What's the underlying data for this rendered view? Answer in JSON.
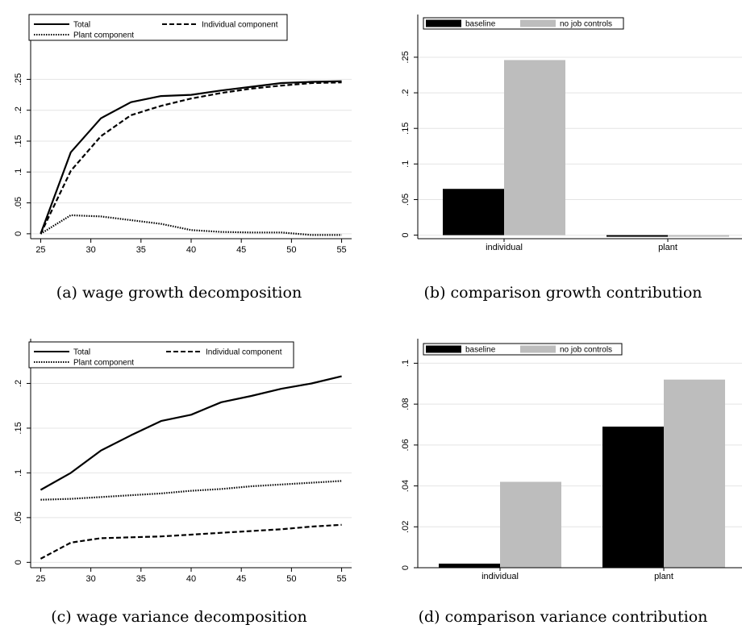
{
  "colors": {
    "baseline": "#000000",
    "no_job_controls": "#bdbdbd",
    "line": "#000000"
  },
  "chart_data": [
    {
      "id": "a",
      "type": "line",
      "caption": "(a)  wage growth decomposition",
      "title": "",
      "xlabel": "",
      "ylabel": "",
      "xlim": [
        24,
        56
      ],
      "ylim": [
        -0.008,
        0.355
      ],
      "xticks": [
        "25",
        "30",
        "35",
        "40",
        "45",
        "50",
        "55"
      ],
      "yticks": [
        "0",
        ".05",
        ".1",
        ".15",
        ".2",
        ".25"
      ],
      "grid": true,
      "legend": "top",
      "x": [
        25,
        28,
        31,
        34,
        37,
        40,
        43,
        46,
        49,
        52,
        55
      ],
      "series": [
        {
          "name": "Total",
          "style": "solid",
          "values": [
            0,
            0.132,
            0.187,
            0.213,
            0.223,
            0.225,
            0.232,
            0.238,
            0.244,
            0.246,
            0.247
          ]
        },
        {
          "name": "Individual component",
          "style": "dashed",
          "values": [
            0,
            0.102,
            0.158,
            0.192,
            0.207,
            0.219,
            0.228,
            0.235,
            0.24,
            0.244,
            0.245
          ]
        },
        {
          "name": "Plant component",
          "style": "dotted",
          "values": [
            0,
            0.03,
            0.028,
            0.022,
            0.016,
            0.006,
            0.003,
            0.002,
            0.002,
            -0.002,
            -0.002
          ]
        }
      ]
    },
    {
      "id": "b",
      "type": "bar",
      "caption": "(b)  comparison growth contribution",
      "title": "",
      "xlabel": "",
      "ylabel": "",
      "categories": [
        "individual",
        "plant"
      ],
      "ylim": [
        -0.005,
        0.31
      ],
      "yticks": [
        "0",
        ".05",
        ".1",
        ".15",
        ".2",
        ".25"
      ],
      "grid": true,
      "legend": "top-left",
      "series": [
        {
          "name": "baseline",
          "values": [
            0.065,
            -0.002
          ]
        },
        {
          "name": "no job controls",
          "values": [
            0.246,
            -0.001
          ]
        }
      ]
    },
    {
      "id": "c",
      "type": "line",
      "caption": "(c)  wage variance decomposition",
      "title": "",
      "xlabel": "",
      "ylabel": "",
      "xlim": [
        24,
        56
      ],
      "ylim": [
        -0.006,
        0.25
      ],
      "xticks": [
        "25",
        "30",
        "35",
        "40",
        "45",
        "50",
        "55"
      ],
      "yticks": [
        "0",
        ".05",
        ".1",
        ".15",
        ".2"
      ],
      "grid": true,
      "legend": "top",
      "x": [
        25,
        28,
        31,
        34,
        37,
        40,
        43,
        46,
        49,
        52,
        55
      ],
      "series": [
        {
          "name": "Total",
          "style": "solid",
          "values": [
            0.081,
            0.1,
            0.125,
            0.142,
            0.158,
            0.165,
            0.179,
            0.186,
            0.194,
            0.2,
            0.208
          ]
        },
        {
          "name": "Individual component",
          "style": "dashed",
          "values": [
            0.004,
            0.022,
            0.027,
            0.028,
            0.029,
            0.031,
            0.033,
            0.035,
            0.037,
            0.04,
            0.042
          ]
        },
        {
          "name": "Plant component",
          "style": "dotted",
          "values": [
            0.07,
            0.071,
            0.073,
            0.075,
            0.077,
            0.08,
            0.082,
            0.085,
            0.087,
            0.089,
            0.091
          ]
        }
      ]
    },
    {
      "id": "d",
      "type": "bar",
      "caption": "(d)  comparison variance contribution",
      "title": "",
      "xlabel": "",
      "ylabel": "",
      "categories": [
        "individual",
        "plant"
      ],
      "ylim": [
        0,
        0.112
      ],
      "yticks": [
        "0",
        ".02",
        ".04",
        ".06",
        ".08",
        ".1"
      ],
      "grid": true,
      "legend": "top-left",
      "series": [
        {
          "name": "baseline",
          "values": [
            0.002,
            0.069
          ]
        },
        {
          "name": "no job controls",
          "values": [
            0.042,
            0.092
          ]
        }
      ]
    }
  ]
}
